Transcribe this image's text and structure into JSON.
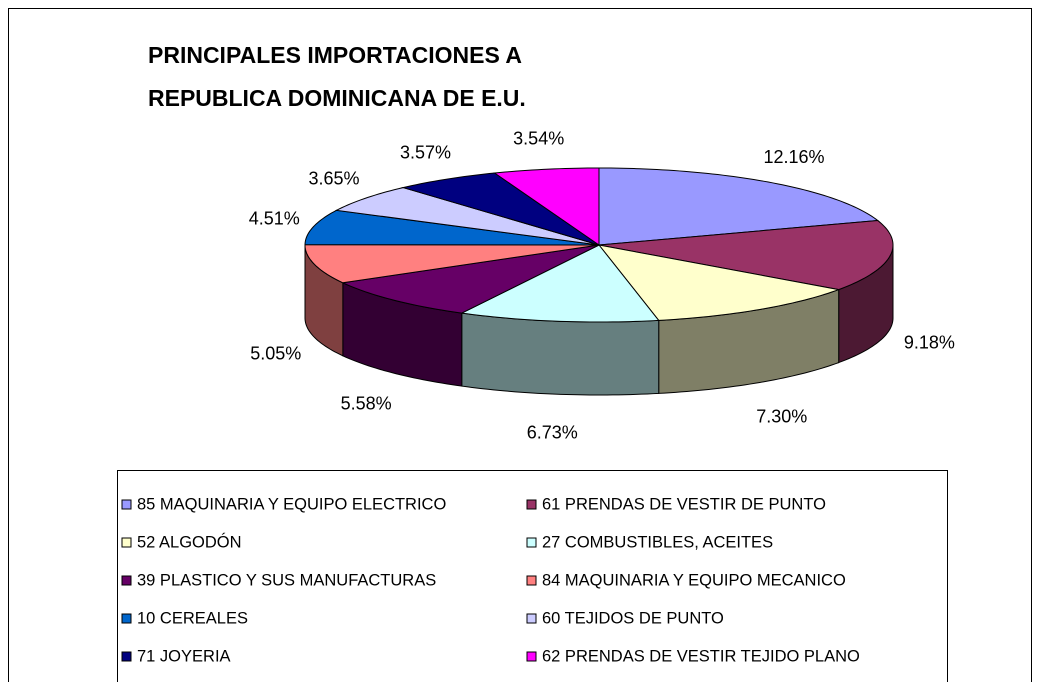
{
  "chart_data": {
    "type": "pie3d",
    "title": [
      "PRINCIPALES IMPORTACIONES A",
      "REPUBLICA DOMINICANA DE E.U."
    ],
    "categories": [
      "85 MAQUINARIA Y EQUIPO ELECTRICO",
      "61 PRENDAS DE VESTIR DE PUNTO",
      "52 ALGODÓN",
      "27 COMBUSTIBLES, ACEITES",
      "39 PLASTICO Y SUS MANUFACTURAS",
      "84 MAQUINARIA Y EQUIPO MECANICO",
      "10 CEREALES",
      "60 TEJIDOS DE PUNTO",
      "71 JOYERIA",
      "62 PRENDAS DE VESTIR TEJIDO PLANO"
    ],
    "values": [
      12.16,
      9.18,
      7.3,
      6.73,
      5.58,
      5.05,
      4.51,
      3.65,
      3.57,
      3.54
    ],
    "value_labels": [
      "12.16%",
      "9.18%",
      "7.30%",
      "6.73%",
      "5.58%",
      "5.05%",
      "4.51%",
      "3.65%",
      "3.57%",
      "3.54%"
    ],
    "colors": [
      "#9999ff",
      "#993366",
      "#ffffcc",
      "#ccffff",
      "#660066",
      "#ff8080",
      "#0066cc",
      "#ccccff",
      "#000080",
      "#ff00ff"
    ],
    "legend": "bottom"
  }
}
